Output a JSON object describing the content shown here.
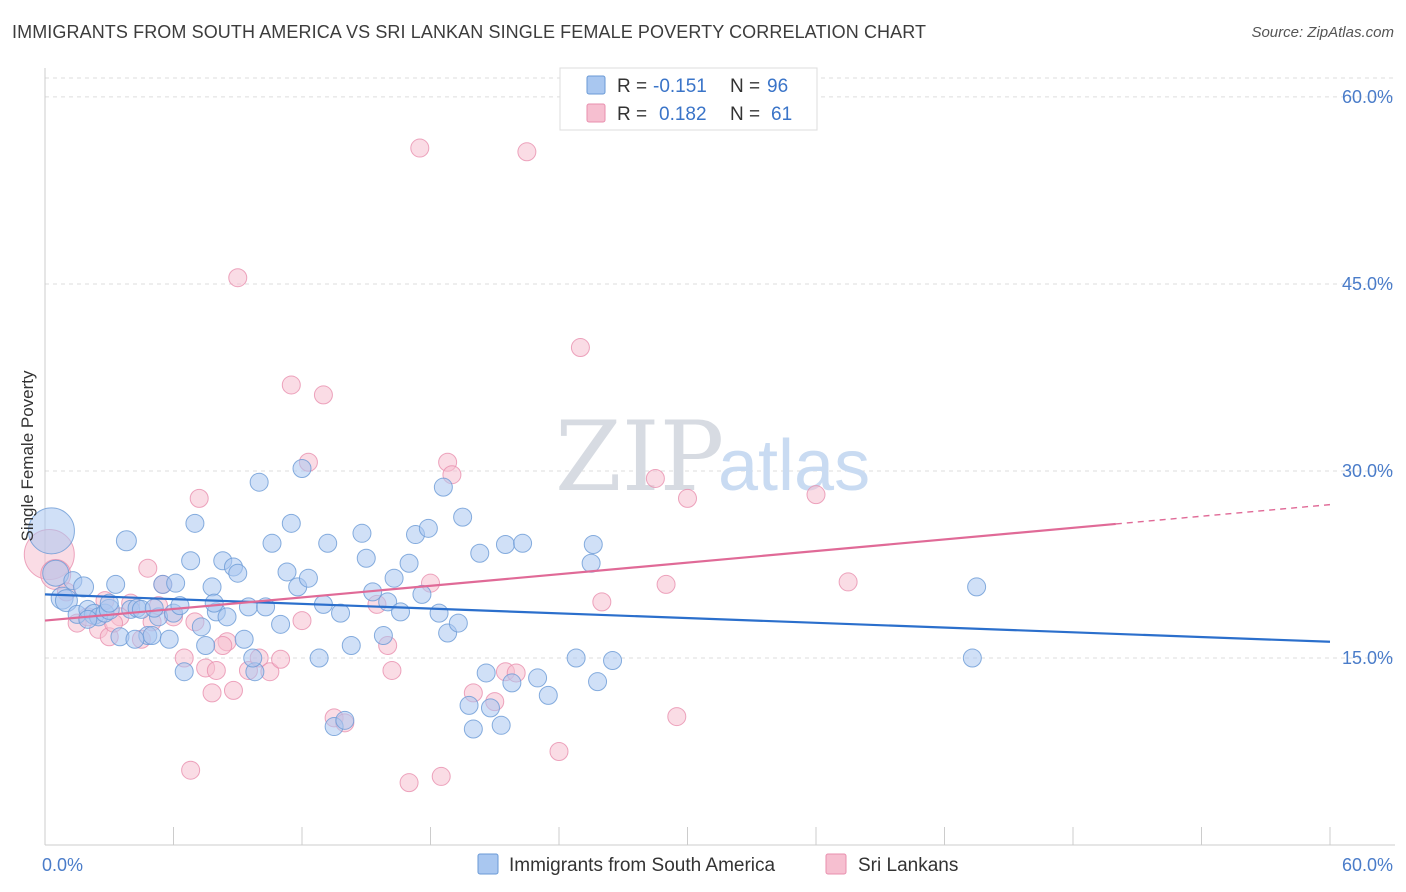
{
  "title": "IMMIGRANTS FROM SOUTH AMERICA VS SRI LANKAN SINGLE FEMALE POVERTY CORRELATION CHART",
  "source": "Source: ZipAtlas.com",
  "watermark": {
    "zip": "ZIP",
    "atlas": "atlas"
  },
  "colors": {
    "blue_fill": "#a9c7f0",
    "blue_stroke": "#6a9ad6",
    "blue_line": "#2b6fcc",
    "pink_fill": "#f6bfd0",
    "pink_stroke": "#e88fae",
    "pink_line": "#e06a97",
    "tick_text": "#4a7cc9",
    "grid": "#dddddd"
  },
  "legend": {
    "rows": [
      {
        "r_label": "R =",
        "r_value": "-0.151",
        "n_label": "N =",
        "n_value": "96"
      },
      {
        "r_label": "R =",
        "r_value": "0.182",
        "n_label": "N =",
        "n_value": "61"
      }
    ]
  },
  "bottom_legend": [
    "Immigrants from South America",
    "Sri Lankans"
  ],
  "chart_data": {
    "type": "scatter",
    "title": "IMMIGRANTS FROM SOUTH AMERICA VS SRI LANKAN SINGLE FEMALE POVERTY CORRELATION CHART",
    "xlabel": "",
    "ylabel": "Single Female Poverty",
    "xlim": [
      0,
      60
    ],
    "ylim": [
      0,
      62
    ],
    "x_ticks": [
      "0.0%",
      "60.0%"
    ],
    "y_ticks": [
      {
        "value": 15,
        "label": "15.0%"
      },
      {
        "value": 30,
        "label": "30.0%"
      },
      {
        "value": 45,
        "label": "45.0%"
      },
      {
        "value": 60,
        "label": "60.0%"
      }
    ],
    "grid": "horizontal dashed",
    "legend_position": "top-center",
    "series": [
      {
        "name": "Immigrants from South America",
        "r": -0.151,
        "n": 96,
        "trend": {
          "x": [
            0,
            60
          ],
          "y": [
            20.1,
            16.3
          ],
          "dashed_from": null
        },
        "points": [
          [
            0.3,
            25.2,
            22
          ],
          [
            0.5,
            21.8,
            12
          ],
          [
            0.8,
            19.8,
            10
          ],
          [
            1.0,
            19.6,
            10
          ],
          [
            1.3,
            21.2,
            8
          ],
          [
            1.5,
            18.5,
            8
          ],
          [
            1.8,
            20.7,
            9
          ],
          [
            2.0,
            18.9,
            8
          ],
          [
            2.3,
            18.5,
            9
          ],
          [
            2.5,
            18.3,
            8
          ],
          [
            2.8,
            18.6,
            8
          ],
          [
            3.0,
            18.9,
            9
          ],
          [
            3.3,
            20.9,
            8
          ],
          [
            3.5,
            16.7,
            8
          ],
          [
            3.8,
            24.4,
            9
          ],
          [
            4.0,
            18.9,
            8
          ],
          [
            4.3,
            19.0,
            8
          ],
          [
            4.5,
            18.9,
            8
          ],
          [
            4.8,
            16.8,
            8
          ],
          [
            5.0,
            16.8,
            8
          ],
          [
            5.3,
            18.3,
            8
          ],
          [
            5.5,
            20.9,
            8
          ],
          [
            5.8,
            16.5,
            8
          ],
          [
            6.0,
            18.6,
            8
          ],
          [
            6.3,
            19.2,
            8
          ],
          [
            6.5,
            13.9,
            8
          ],
          [
            6.8,
            22.8,
            8
          ],
          [
            7.0,
            25.8,
            8
          ],
          [
            7.3,
            17.5,
            8
          ],
          [
            7.5,
            16.0,
            8
          ],
          [
            7.8,
            20.7,
            8
          ],
          [
            8.0,
            18.7,
            8
          ],
          [
            8.3,
            22.8,
            8
          ],
          [
            8.5,
            18.3,
            8
          ],
          [
            8.8,
            22.3,
            8
          ],
          [
            9.0,
            21.8,
            8
          ],
          [
            9.3,
            16.5,
            8
          ],
          [
            9.5,
            19.1,
            8
          ],
          [
            9.8,
            13.9,
            8
          ],
          [
            10.0,
            29.1,
            8
          ],
          [
            10.3,
            19.1,
            8
          ],
          [
            10.6,
            24.2,
            8
          ],
          [
            11.0,
            17.7,
            8
          ],
          [
            11.3,
            21.9,
            8
          ],
          [
            11.5,
            25.8,
            8
          ],
          [
            11.8,
            20.7,
            8
          ],
          [
            12.0,
            30.2,
            8
          ],
          [
            12.3,
            21.4,
            8
          ],
          [
            12.8,
            15.0,
            8
          ],
          [
            13.0,
            19.3,
            8
          ],
          [
            13.2,
            24.2,
            8
          ],
          [
            13.5,
            9.5,
            8
          ],
          [
            13.8,
            18.6,
            8
          ],
          [
            14.0,
            10.0,
            8
          ],
          [
            14.3,
            16.0,
            8
          ],
          [
            14.8,
            25.0,
            8
          ],
          [
            15.0,
            23.0,
            8
          ],
          [
            15.3,
            20.3,
            8
          ],
          [
            15.8,
            16.8,
            8
          ],
          [
            16.0,
            19.5,
            8
          ],
          [
            16.3,
            21.4,
            8
          ],
          [
            16.6,
            18.7,
            8
          ],
          [
            17.0,
            22.6,
            8
          ],
          [
            17.3,
            24.9,
            8
          ],
          [
            17.6,
            20.1,
            8
          ],
          [
            17.9,
            25.4,
            8
          ],
          [
            18.4,
            18.6,
            8
          ],
          [
            18.6,
            28.7,
            8
          ],
          [
            18.8,
            17.0,
            8
          ],
          [
            19.3,
            17.8,
            8
          ],
          [
            19.5,
            26.3,
            8
          ],
          [
            19.8,
            11.2,
            8
          ],
          [
            20.0,
            9.3,
            8
          ],
          [
            20.3,
            23.4,
            8
          ],
          [
            20.6,
            13.8,
            8
          ],
          [
            20.8,
            11.0,
            8
          ],
          [
            21.3,
            9.6,
            8
          ],
          [
            21.5,
            24.1,
            8
          ],
          [
            21.8,
            13.0,
            8
          ],
          [
            22.3,
            24.2,
            8
          ],
          [
            23.0,
            13.4,
            8
          ],
          [
            23.5,
            12.0,
            8
          ],
          [
            24.8,
            15.0,
            8
          ],
          [
            25.5,
            22.6,
            8
          ],
          [
            25.6,
            24.1,
            8
          ],
          [
            25.8,
            13.1,
            8
          ],
          [
            26.5,
            14.8,
            8
          ],
          [
            43.5,
            20.7,
            8
          ],
          [
            43.3,
            15.0,
            8
          ],
          [
            2.0,
            18.1,
            8
          ],
          [
            3.0,
            19.4,
            8
          ],
          [
            4.2,
            16.5,
            8
          ],
          [
            5.1,
            19.0,
            8
          ],
          [
            6.1,
            21.0,
            8
          ],
          [
            7.9,
            19.4,
            8
          ],
          [
            9.7,
            15.0,
            8
          ]
        ]
      },
      {
        "name": "Sri Lankans",
        "r": 0.182,
        "n": 61,
        "trend": {
          "x": [
            0,
            60
          ],
          "y": [
            18.0,
            27.3
          ],
          "dashed_from": 50
        },
        "points": [
          [
            0.2,
            23.3,
            24
          ],
          [
            0.5,
            21.7,
            14
          ],
          [
            1.0,
            20.3,
            8
          ],
          [
            1.5,
            17.8,
            8
          ],
          [
            2.0,
            18.3,
            8
          ],
          [
            2.5,
            17.3,
            8
          ],
          [
            3.0,
            16.7,
            8
          ],
          [
            3.5,
            18.3,
            8
          ],
          [
            4.0,
            19.4,
            8
          ],
          [
            4.5,
            16.5,
            8
          ],
          [
            5.0,
            17.9,
            8
          ],
          [
            5.5,
            20.9,
            8
          ],
          [
            6.0,
            18.3,
            8
          ],
          [
            6.5,
            15.0,
            8
          ],
          [
            7.0,
            17.9,
            8
          ],
          [
            7.2,
            27.8,
            8
          ],
          [
            7.5,
            14.2,
            8
          ],
          [
            7.8,
            12.2,
            8
          ],
          [
            8.0,
            14.0,
            8
          ],
          [
            8.5,
            16.3,
            8
          ],
          [
            8.8,
            12.4,
            8
          ],
          [
            9.0,
            45.5,
            8
          ],
          [
            9.5,
            14.0,
            8
          ],
          [
            10.0,
            15.0,
            8
          ],
          [
            10.5,
            13.9,
            8
          ],
          [
            11.0,
            14.9,
            8
          ],
          [
            11.5,
            36.9,
            8
          ],
          [
            12.0,
            18.0,
            8
          ],
          [
            12.3,
            30.7,
            8
          ],
          [
            13.0,
            36.1,
            8
          ],
          [
            13.5,
            10.2,
            8
          ],
          [
            14.0,
            9.8,
            8
          ],
          [
            15.5,
            19.3,
            8
          ],
          [
            16.0,
            16.0,
            8
          ],
          [
            16.2,
            14.0,
            8
          ],
          [
            17.0,
            5.0,
            8
          ],
          [
            17.5,
            55.9,
            8
          ],
          [
            18.0,
            21.0,
            8
          ],
          [
            18.5,
            5.5,
            8
          ],
          [
            18.8,
            30.7,
            8
          ],
          [
            19.0,
            29.7,
            8
          ],
          [
            20.0,
            12.2,
            8
          ],
          [
            21.0,
            11.5,
            8
          ],
          [
            21.5,
            13.9,
            8
          ],
          [
            22.0,
            13.8,
            8
          ],
          [
            22.5,
            55.6,
            8
          ],
          [
            24.0,
            7.5,
            8
          ],
          [
            25.0,
            39.9,
            8
          ],
          [
            26.0,
            19.5,
            8
          ],
          [
            28.5,
            29.4,
            8
          ],
          [
            29.0,
            20.9,
            8
          ],
          [
            29.5,
            10.3,
            8
          ],
          [
            30.0,
            27.8,
            8
          ],
          [
            36.0,
            28.1,
            8
          ],
          [
            37.5,
            21.1,
            8
          ],
          [
            3.2,
            17.8,
            8
          ],
          [
            4.8,
            22.2,
            8
          ],
          [
            6.8,
            6.0,
            8
          ],
          [
            8.3,
            16.0,
            8
          ],
          [
            2.8,
            19.6,
            8
          ],
          [
            5.3,
            19.2,
            8
          ]
        ]
      }
    ]
  }
}
